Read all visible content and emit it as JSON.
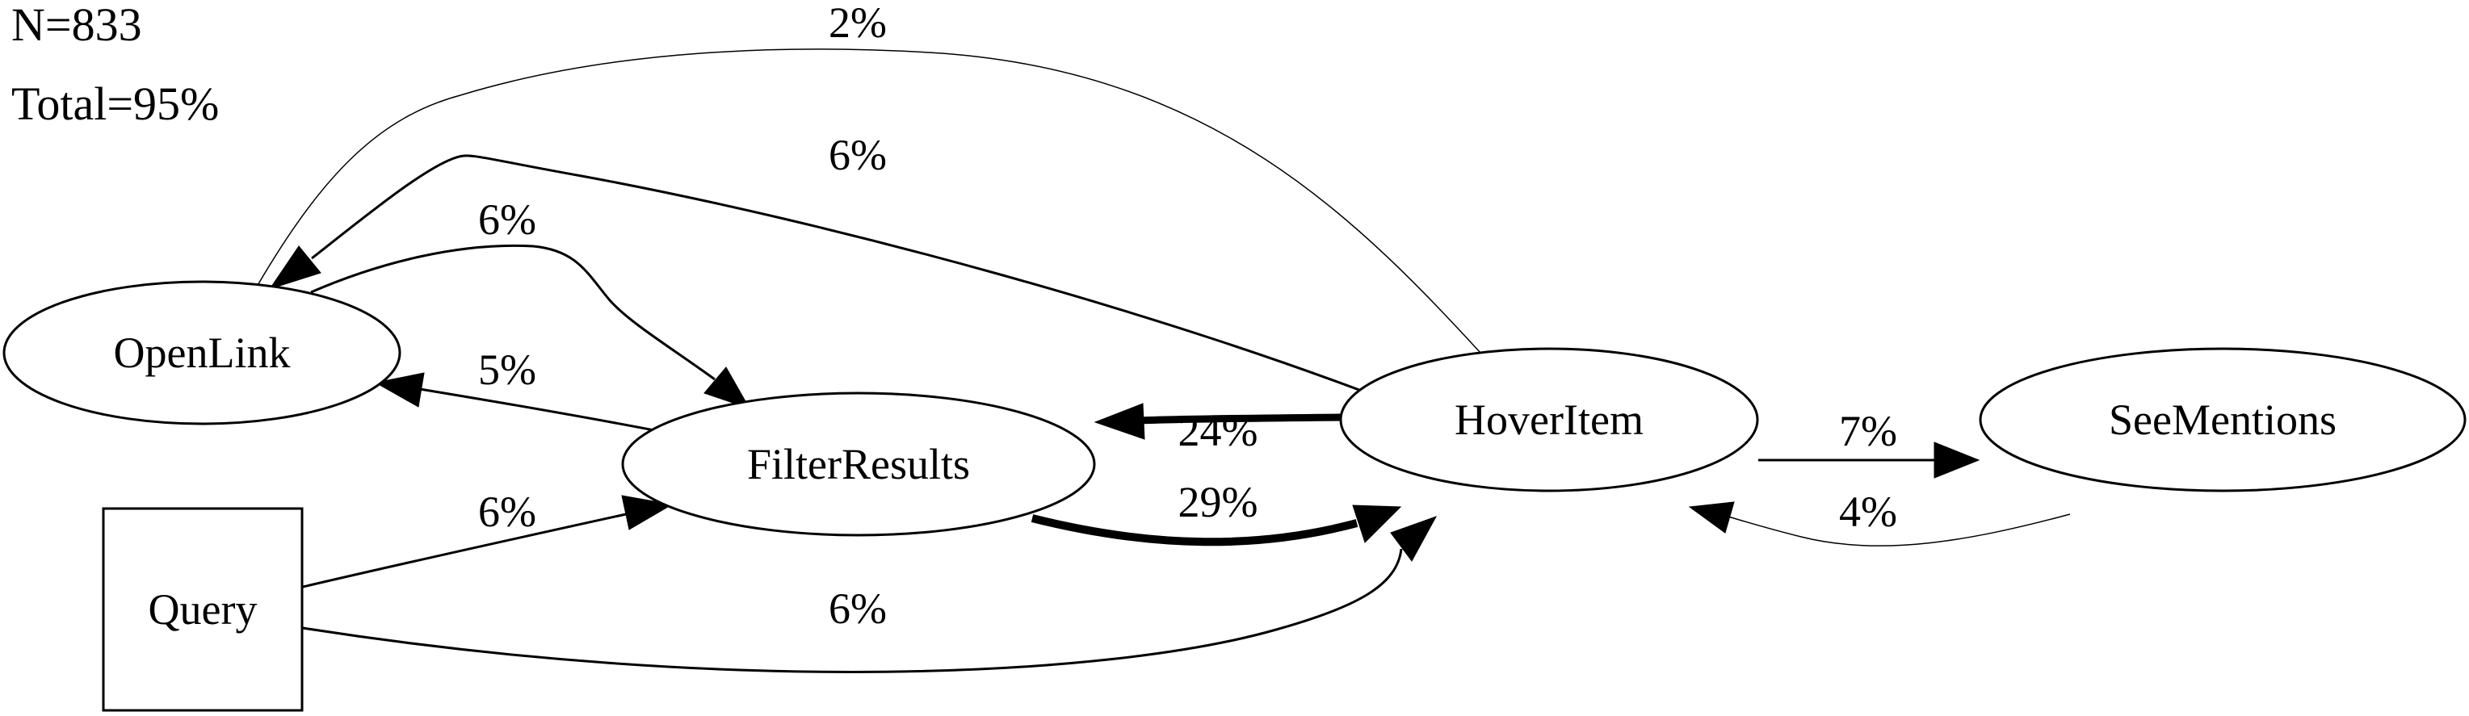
{
  "summary": {
    "n": "N=833",
    "total": "Total=95%"
  },
  "nodes": {
    "openlink": "OpenLink",
    "filterresults": "FilterResults",
    "hoveritem": "HoverItem",
    "seementions": "SeeMentions",
    "query": "Query"
  },
  "edges": {
    "openlink_hoveritem": "2%",
    "hoveritem_openlink": "6%",
    "openlink_filterresults": "6%",
    "filterresults_openlink": "5%",
    "hoveritem_filterresults": "24%",
    "filterresults_hoveritem": "29%",
    "hoveritem_seementions": "7%",
    "seementions_hoveritem": "4%",
    "query_filterresults": "6%",
    "query_hoveritem": "6%"
  }
}
